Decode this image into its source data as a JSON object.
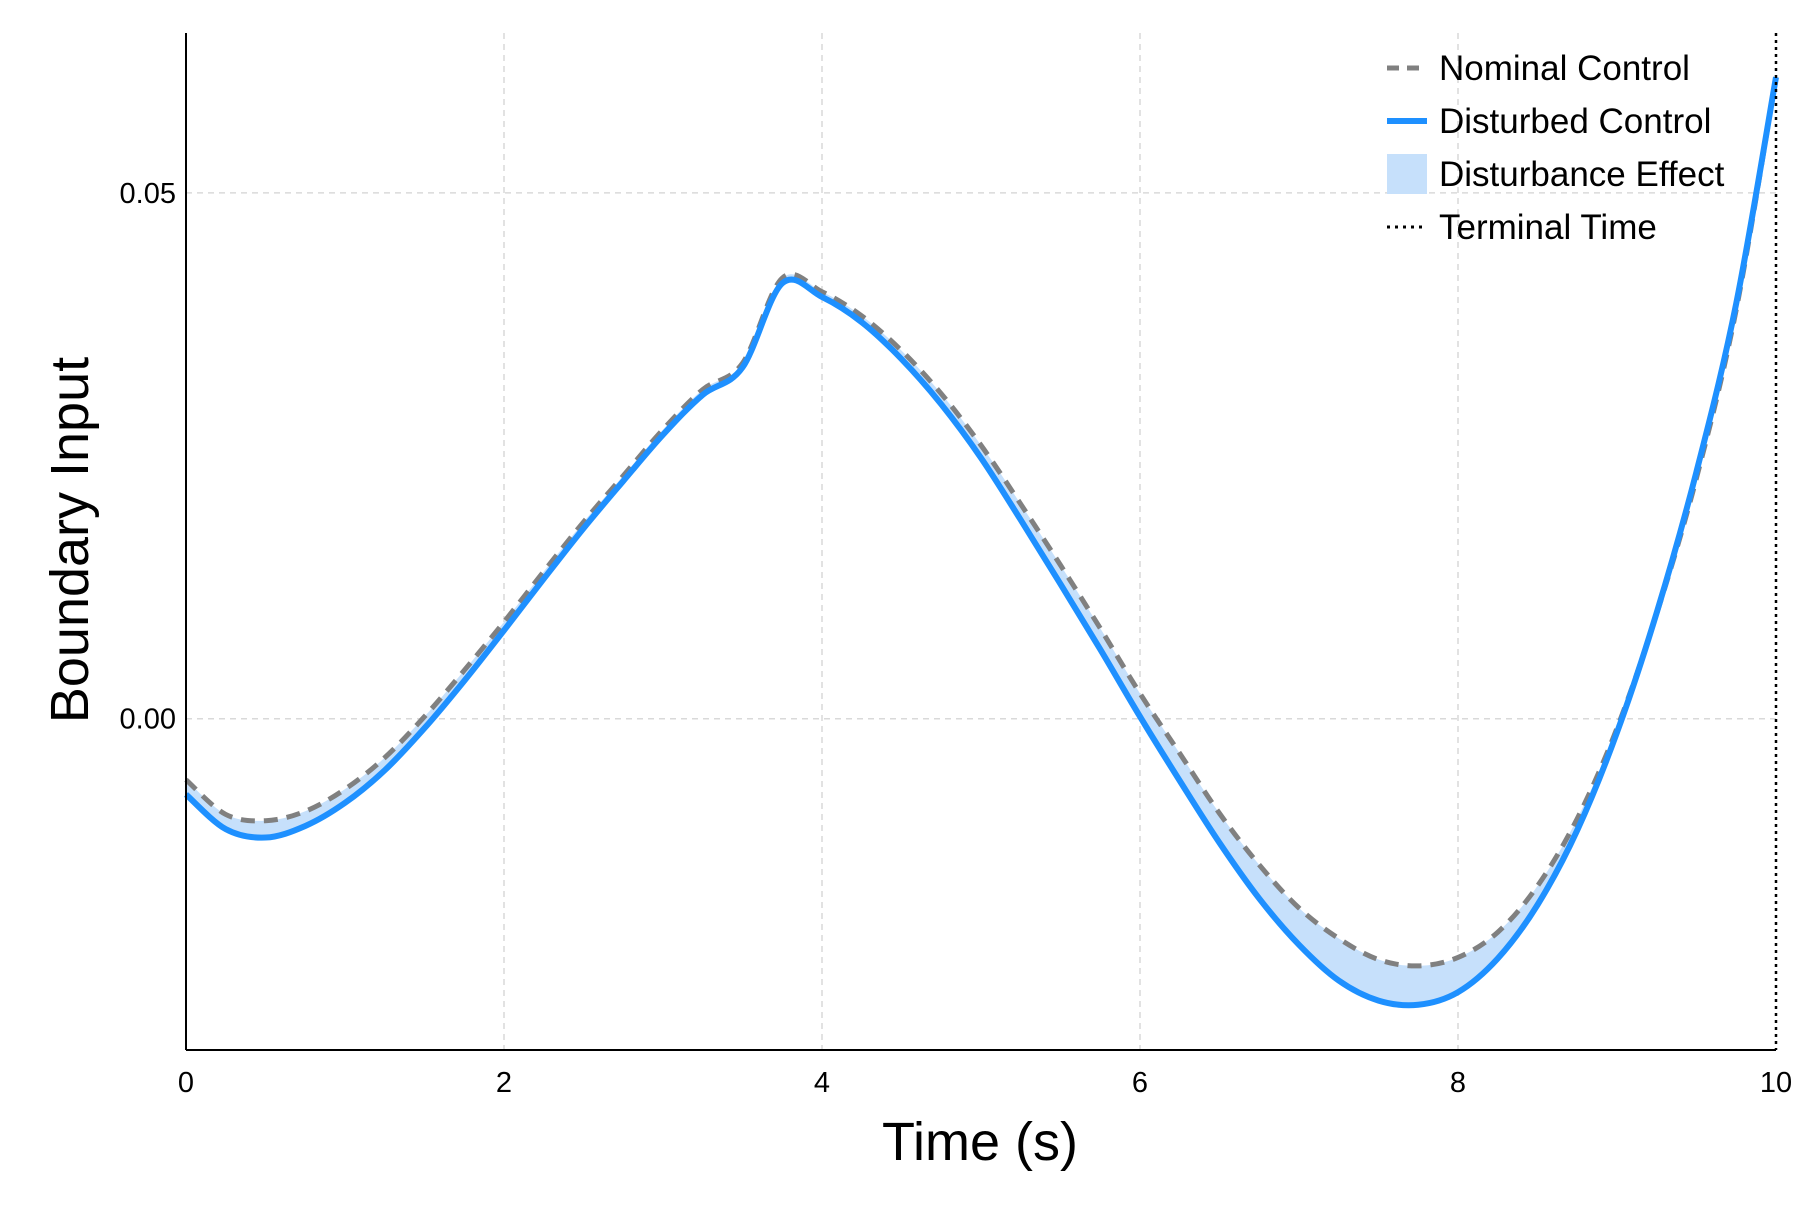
{
  "chart_data": {
    "type": "line",
    "title": "",
    "xlabel": "Time (s)",
    "ylabel": "Boundary Input",
    "xlim": [
      0,
      10
    ],
    "ylim": [
      -0.0315,
      0.0652
    ],
    "x_ticks": [
      0,
      2,
      4,
      6,
      8,
      10
    ],
    "x_tick_labels": [
      "0",
      "2",
      "4",
      "6",
      "8",
      "10"
    ],
    "y_ticks": [
      0.0,
      0.05
    ],
    "y_tick_labels": [
      "0.00",
      "0.05"
    ],
    "grid": true,
    "legend_position": "top-right",
    "terminal_time": 10,
    "colors": {
      "nominal": "#808080",
      "disturbed": "#1e90ff",
      "fill": "#c6e0fb",
      "terminal": "#000000",
      "grid": "#d9d9d9"
    },
    "x": [
      0,
      0.25,
      0.5,
      0.75,
      1,
      1.25,
      1.5,
      1.75,
      2,
      2.25,
      2.5,
      2.75,
      3,
      3.25,
      3.5,
      3.75,
      4,
      4.25,
      4.5,
      4.75,
      5,
      5.25,
      5.5,
      5.75,
      6,
      6.25,
      6.5,
      6.75,
      7,
      7.25,
      7.5,
      7.75,
      8,
      8.25,
      8.5,
      8.75,
      9,
      9.25,
      9.5,
      9.75,
      10
    ],
    "series": [
      {
        "name": "Nominal Control",
        "style": "dashed",
        "values": [
          -0.0058,
          -0.0091,
          -0.0097,
          -0.0088,
          -0.0067,
          -0.0037,
          0.0002,
          0.0046,
          0.0092,
          0.014,
          0.0187,
          0.0231,
          0.0275,
          0.0313,
          0.0338,
          0.0419,
          0.0406,
          0.0383,
          0.035,
          0.0309,
          0.026,
          0.0204,
          0.0146,
          0.0086,
          0.0024,
          -0.0033,
          -0.009,
          -0.0139,
          -0.018,
          -0.0209,
          -0.0229,
          -0.0235,
          -0.0227,
          -0.0203,
          -0.0159,
          -0.0095,
          -0.0009,
          0.01,
          0.0229,
          0.0389,
          0.061
        ]
      },
      {
        "name": "Disturbed Control",
        "style": "solid",
        "values": [
          -0.0072,
          -0.0105,
          -0.0113,
          -0.0102,
          -0.008,
          -0.0049,
          -0.0009,
          0.0036,
          0.0084,
          0.0133,
          0.0181,
          0.0226,
          0.027,
          0.0308,
          0.0334,
          0.0414,
          0.0401,
          0.0377,
          0.0342,
          0.0299,
          0.0248,
          0.0189,
          0.0128,
          0.0066,
          0.0002,
          -0.0059,
          -0.0118,
          -0.0171,
          -0.0215,
          -0.0249,
          -0.0268,
          -0.0272,
          -0.026,
          -0.0228,
          -0.0177,
          -0.0106,
          -0.0013,
          0.0101,
          0.0235,
          0.0395,
          0.061
        ]
      }
    ],
    "legend": [
      {
        "label": "Nominal Control",
        "style": "dashed"
      },
      {
        "label": "Disturbed Control",
        "style": "solid"
      },
      {
        "label": "Disturbance Effect",
        "style": "fill"
      },
      {
        "label": "Terminal Time",
        "style": "dotted"
      }
    ]
  }
}
